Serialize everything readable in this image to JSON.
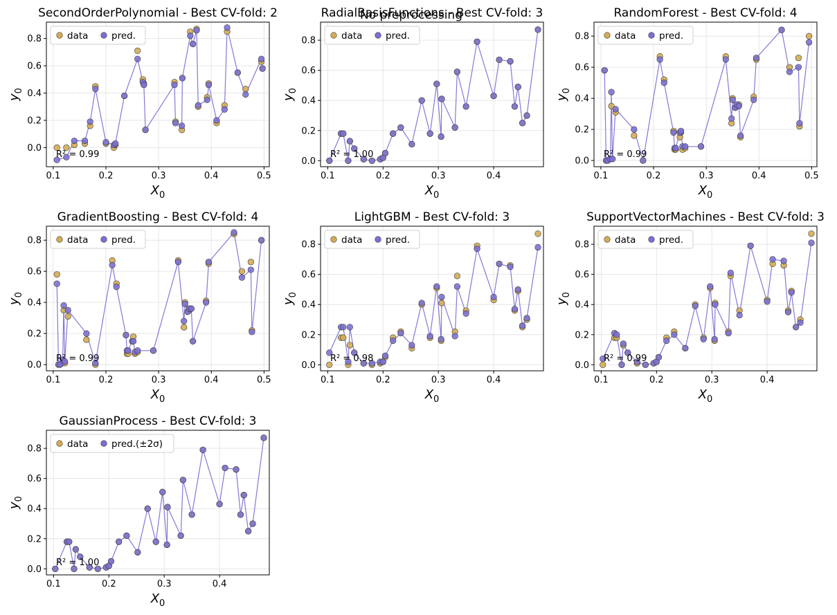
{
  "suptitle": "No preprocessing",
  "colors": {
    "data": "#d4ac55",
    "pred": "#7b6fd6",
    "line": "#8478d6",
    "edge": "#3a3a3a",
    "grid": "#e6e6e6"
  },
  "chart_data": [
    {
      "type": "scatter",
      "title": "SecondOrderPolynomial - Best CV-fold: 2",
      "xlabel": "X0",
      "ylabel": "y0",
      "xlim": [
        0.087,
        0.51
      ],
      "ylim": [
        -0.14,
        0.92
      ],
      "xticks": [
        0.1,
        0.2,
        0.3,
        0.4,
        0.5
      ],
      "xtick_labels": [
        "0.1",
        "0.2",
        "0.3",
        "0.4",
        "0.5"
      ],
      "yticks": [
        0.0,
        0.2,
        0.4,
        0.6,
        0.8
      ],
      "ytick_labels": [
        "0.0",
        "0.2",
        "0.4",
        "0.6",
        "0.8"
      ],
      "legend": [
        "data",
        "pred."
      ],
      "r2": "R² = 0.99",
      "x": [
        0.107,
        0.125,
        0.14,
        0.16,
        0.17,
        0.18,
        0.2,
        0.215,
        0.218,
        0.235,
        0.26,
        0.27,
        0.272,
        0.275,
        0.33,
        0.332,
        0.344,
        0.345,
        0.36,
        0.365,
        0.372,
        0.375,
        0.392,
        0.395,
        0.41,
        0.425,
        0.43,
        0.45,
        0.465,
        0.495,
        0.497
      ],
      "data": [
        0.0,
        0.0,
        0.02,
        0.03,
        0.16,
        0.45,
        0.03,
        0.0,
        0.02,
        0.38,
        0.71,
        0.5,
        0.47,
        0.13,
        0.48,
        0.19,
        0.13,
        0.51,
        0.85,
        0.76,
        0.87,
        0.3,
        0.37,
        0.47,
        0.18,
        0.31,
        0.85,
        0.55,
        0.43,
        0.63,
        0.58
      ],
      "pred": [
        -0.09,
        -0.07,
        0.05,
        0.05,
        0.19,
        0.43,
        0.04,
        0.02,
        0.03,
        0.38,
        0.65,
        0.48,
        0.46,
        0.13,
        0.46,
        0.18,
        0.16,
        0.51,
        0.82,
        0.76,
        0.86,
        0.31,
        0.35,
        0.46,
        0.2,
        0.28,
        0.88,
        0.55,
        0.39,
        0.65,
        0.58
      ]
    },
    {
      "type": "scatter",
      "title": "RadialBasisFunctions - Best CV-fold: 3",
      "xlabel": "X0",
      "ylabel": "y0",
      "xlim": [
        0.087,
        0.49
      ],
      "ylim": [
        -0.04,
        0.92
      ],
      "xticks": [
        0.1,
        0.2,
        0.3,
        0.4
      ],
      "xtick_labels": [
        "0.1",
        "0.2",
        "0.3",
        "0.4"
      ],
      "yticks": [
        0.0,
        0.2,
        0.4,
        0.6,
        0.8
      ],
      "ytick_labels": [
        "0.0",
        "0.2",
        "0.4",
        "0.6",
        "0.8"
      ],
      "legend": [
        "data",
        "pred."
      ],
      "r2": "R² = 1.00",
      "x": [
        0.103,
        0.124,
        0.128,
        0.137,
        0.14,
        0.148,
        0.165,
        0.18,
        0.195,
        0.2,
        0.204,
        0.218,
        0.232,
        0.252,
        0.27,
        0.285,
        0.297,
        0.305,
        0.306,
        0.33,
        0.334,
        0.35,
        0.37,
        0.4,
        0.41,
        0.43,
        0.438,
        0.444,
        0.452,
        0.46,
        0.48
      ],
      "data": [
        0.0,
        0.18,
        0.18,
        0.0,
        0.13,
        0.08,
        0.01,
        0.0,
        0.01,
        0.02,
        0.05,
        0.18,
        0.22,
        0.11,
        0.4,
        0.18,
        0.51,
        0.16,
        0.41,
        0.22,
        0.59,
        0.36,
        0.79,
        0.43,
        0.67,
        0.66,
        0.36,
        0.49,
        0.25,
        0.3,
        0.87
      ],
      "pred": [
        0.0,
        0.18,
        0.18,
        0.0,
        0.13,
        0.08,
        0.01,
        0.0,
        0.01,
        0.02,
        0.05,
        0.18,
        0.22,
        0.11,
        0.4,
        0.18,
        0.51,
        0.16,
        0.41,
        0.22,
        0.59,
        0.36,
        0.79,
        0.43,
        0.67,
        0.66,
        0.36,
        0.49,
        0.25,
        0.3,
        0.87
      ]
    },
    {
      "type": "scatter",
      "title": "RandomForest - Best CV-fold: 4",
      "xlabel": "X0",
      "ylabel": "y0",
      "xlim": [
        0.087,
        0.51
      ],
      "ylim": [
        -0.04,
        0.89
      ],
      "xticks": [
        0.1,
        0.2,
        0.3,
        0.4,
        0.5
      ],
      "xtick_labels": [
        "0.1",
        "0.2",
        "0.3",
        "0.4",
        "0.5"
      ],
      "yticks": [
        0.0,
        0.2,
        0.4,
        0.6,
        0.8
      ],
      "ytick_labels": [
        "0.0",
        "0.2",
        "0.4",
        "0.6",
        "0.8"
      ],
      "legend": [
        "data",
        "pred."
      ],
      "r2": "R² = 0.99",
      "x": [
        0.107,
        0.11,
        0.113,
        0.118,
        0.12,
        0.122,
        0.128,
        0.163,
        0.18,
        0.212,
        0.22,
        0.238,
        0.24,
        0.242,
        0.25,
        0.252,
        0.255,
        0.26,
        0.29,
        0.337,
        0.348,
        0.35,
        0.355,
        0.358,
        0.362,
        0.365,
        0.39,
        0.395,
        0.443,
        0.458,
        0.475,
        0.477,
        0.495
      ],
      "data": [
        0.58,
        0.0,
        0.0,
        0.01,
        0.35,
        0.01,
        0.31,
        0.16,
        0.0,
        0.67,
        0.52,
        0.19,
        0.07,
        0.07,
        0.15,
        0.18,
        0.07,
        0.08,
        0.09,
        0.67,
        0.24,
        0.4,
        0.34,
        0.35,
        0.36,
        0.15,
        0.41,
        0.65,
        0.84,
        0.6,
        0.66,
        0.22,
        0.8
      ],
      "pred": [
        0.58,
        0.0,
        0.0,
        0.01,
        0.44,
        0.01,
        0.33,
        0.2,
        0.0,
        0.65,
        0.5,
        0.18,
        0.08,
        0.08,
        0.18,
        0.19,
        0.09,
        0.09,
        0.09,
        0.65,
        0.27,
        0.39,
        0.34,
        0.36,
        0.35,
        0.16,
        0.39,
        0.66,
        0.84,
        0.57,
        0.6,
        0.24,
        0.76
      ]
    },
    {
      "type": "scatter",
      "title": "GradientBoosting - Best CV-fold: 4",
      "xlabel": "X0",
      "ylabel": "y0",
      "xlim": [
        0.087,
        0.51
      ],
      "ylim": [
        -0.04,
        0.89
      ],
      "xticks": [
        0.1,
        0.2,
        0.3,
        0.4,
        0.5
      ],
      "xtick_labels": [
        "0.1",
        "0.2",
        "0.3",
        "0.4",
        "0.5"
      ],
      "yticks": [
        0.0,
        0.2,
        0.4,
        0.6,
        0.8
      ],
      "ytick_labels": [
        "0.0",
        "0.2",
        "0.4",
        "0.6",
        "0.8"
      ],
      "legend": [
        "data",
        "pred."
      ],
      "r2": "R² = 0.99",
      "x": [
        0.107,
        0.11,
        0.113,
        0.118,
        0.12,
        0.122,
        0.128,
        0.163,
        0.18,
        0.212,
        0.22,
        0.238,
        0.24,
        0.242,
        0.25,
        0.252,
        0.255,
        0.26,
        0.29,
        0.337,
        0.348,
        0.35,
        0.355,
        0.358,
        0.362,
        0.365,
        0.39,
        0.395,
        0.443,
        0.458,
        0.475,
        0.477,
        0.495
      ],
      "data": [
        0.58,
        0.0,
        0.0,
        0.01,
        0.35,
        0.01,
        0.31,
        0.16,
        0.0,
        0.67,
        0.52,
        0.19,
        0.07,
        0.07,
        0.15,
        0.18,
        0.07,
        0.08,
        0.09,
        0.67,
        0.24,
        0.4,
        0.34,
        0.35,
        0.36,
        0.15,
        0.41,
        0.65,
        0.84,
        0.6,
        0.66,
        0.22,
        0.8
      ],
      "pred": [
        0.52,
        0.0,
        0.0,
        0.03,
        0.38,
        0.02,
        0.35,
        0.2,
        0.01,
        0.64,
        0.5,
        0.19,
        0.09,
        0.09,
        0.15,
        0.15,
        0.08,
        0.09,
        0.09,
        0.66,
        0.28,
        0.39,
        0.34,
        0.36,
        0.36,
        0.15,
        0.4,
        0.66,
        0.85,
        0.56,
        0.61,
        0.21,
        0.8
      ]
    },
    {
      "type": "scatter",
      "title": "LightGBM - Best CV-fold: 3",
      "xlabel": "X0",
      "ylabel": "y0",
      "xlim": [
        0.087,
        0.49
      ],
      "ylim": [
        -0.04,
        0.92
      ],
      "xticks": [
        0.1,
        0.2,
        0.3,
        0.4
      ],
      "xtick_labels": [
        "0.1",
        "0.2",
        "0.3",
        "0.4"
      ],
      "yticks": [
        0.0,
        0.2,
        0.4,
        0.6,
        0.8
      ],
      "ytick_labels": [
        "0.0",
        "0.2",
        "0.4",
        "0.6",
        "0.8"
      ],
      "legend": [
        "data",
        "pred."
      ],
      "r2": "R² = 0.98",
      "x": [
        0.103,
        0.124,
        0.128,
        0.137,
        0.14,
        0.148,
        0.165,
        0.18,
        0.195,
        0.2,
        0.204,
        0.218,
        0.232,
        0.252,
        0.27,
        0.285,
        0.297,
        0.305,
        0.306,
        0.33,
        0.334,
        0.35,
        0.37,
        0.4,
        0.41,
        0.43,
        0.438,
        0.444,
        0.452,
        0.46,
        0.48
      ],
      "data": [
        0.0,
        0.18,
        0.18,
        0.0,
        0.13,
        0.08,
        0.01,
        0.0,
        0.01,
        0.02,
        0.05,
        0.18,
        0.22,
        0.11,
        0.4,
        0.18,
        0.51,
        0.16,
        0.41,
        0.22,
        0.59,
        0.36,
        0.79,
        0.43,
        0.67,
        0.66,
        0.36,
        0.49,
        0.25,
        0.3,
        0.87
      ],
      "pred": [
        0.08,
        0.25,
        0.25,
        0.02,
        0.25,
        0.08,
        0.01,
        0.01,
        0.02,
        0.02,
        0.06,
        0.16,
        0.21,
        0.13,
        0.41,
        0.19,
        0.52,
        0.17,
        0.45,
        0.19,
        0.52,
        0.34,
        0.77,
        0.45,
        0.67,
        0.65,
        0.37,
        0.5,
        0.26,
        0.31,
        0.78
      ]
    },
    {
      "type": "scatter",
      "title": "SupportVectorMachines - Best CV-fold: 3",
      "xlabel": "X0",
      "ylabel": "y0",
      "xlim": [
        0.087,
        0.49
      ],
      "ylim": [
        -0.04,
        0.92
      ],
      "xticks": [
        0.1,
        0.2,
        0.3,
        0.4
      ],
      "xtick_labels": [
        "0.1",
        "0.2",
        "0.3",
        "0.4"
      ],
      "yticks": [
        0.0,
        0.2,
        0.4,
        0.6,
        0.8
      ],
      "ytick_labels": [
        "0.0",
        "0.2",
        "0.4",
        "0.6",
        "0.8"
      ],
      "legend": [
        "data",
        "pred."
      ],
      "r2": "R² = 0.99",
      "x": [
        0.103,
        0.124,
        0.128,
        0.137,
        0.14,
        0.148,
        0.165,
        0.18,
        0.195,
        0.2,
        0.204,
        0.218,
        0.232,
        0.252,
        0.27,
        0.285,
        0.297,
        0.305,
        0.306,
        0.33,
        0.334,
        0.35,
        0.37,
        0.4,
        0.41,
        0.43,
        0.438,
        0.444,
        0.452,
        0.46,
        0.48
      ],
      "data": [
        0.0,
        0.18,
        0.18,
        0.0,
        0.13,
        0.08,
        0.01,
        0.0,
        0.01,
        0.02,
        0.05,
        0.18,
        0.22,
        0.11,
        0.4,
        0.18,
        0.51,
        0.16,
        0.41,
        0.22,
        0.59,
        0.36,
        0.79,
        0.43,
        0.67,
        0.66,
        0.36,
        0.49,
        0.25,
        0.3,
        0.87
      ],
      "pred": [
        0.04,
        0.21,
        0.2,
        0.0,
        0.14,
        0.08,
        0.02,
        0.0,
        0.01,
        0.02,
        0.05,
        0.16,
        0.2,
        0.11,
        0.39,
        0.17,
        0.52,
        0.17,
        0.4,
        0.21,
        0.61,
        0.33,
        0.79,
        0.42,
        0.7,
        0.69,
        0.35,
        0.48,
        0.25,
        0.28,
        0.81
      ]
    },
    {
      "type": "scatter",
      "title": "GaussianProcess - Best CV-fold: 3",
      "xlabel": "X0",
      "ylabel": "y0",
      "xlim": [
        0.087,
        0.49
      ],
      "ylim": [
        -0.04,
        0.92
      ],
      "xticks": [
        0.1,
        0.2,
        0.3,
        0.4
      ],
      "xtick_labels": [
        "0.1",
        "0.2",
        "0.3",
        "0.4"
      ],
      "yticks": [
        0.0,
        0.2,
        0.4,
        0.6,
        0.8
      ],
      "ytick_labels": [
        "0.0",
        "0.2",
        "0.4",
        "0.6",
        "0.8"
      ],
      "legend": [
        "data",
        "pred.(±2σ)"
      ],
      "r2": "R² = 1.00",
      "x": [
        0.103,
        0.124,
        0.128,
        0.137,
        0.14,
        0.148,
        0.165,
        0.18,
        0.195,
        0.2,
        0.204,
        0.218,
        0.232,
        0.252,
        0.27,
        0.285,
        0.297,
        0.305,
        0.306,
        0.33,
        0.334,
        0.35,
        0.37,
        0.4,
        0.41,
        0.43,
        0.438,
        0.444,
        0.452,
        0.46,
        0.48
      ],
      "data": [
        0.0,
        0.18,
        0.18,
        0.0,
        0.13,
        0.08,
        0.01,
        0.0,
        0.01,
        0.02,
        0.05,
        0.18,
        0.22,
        0.11,
        0.4,
        0.18,
        0.51,
        0.16,
        0.41,
        0.22,
        0.59,
        0.36,
        0.79,
        0.43,
        0.67,
        0.66,
        0.36,
        0.49,
        0.25,
        0.3,
        0.87
      ],
      "pred": [
        0.0,
        0.18,
        0.18,
        0.0,
        0.13,
        0.08,
        0.01,
        0.0,
        0.01,
        0.02,
        0.05,
        0.18,
        0.22,
        0.11,
        0.4,
        0.18,
        0.51,
        0.16,
        0.41,
        0.22,
        0.59,
        0.36,
        0.79,
        0.43,
        0.67,
        0.66,
        0.36,
        0.49,
        0.25,
        0.3,
        0.87
      ]
    }
  ]
}
